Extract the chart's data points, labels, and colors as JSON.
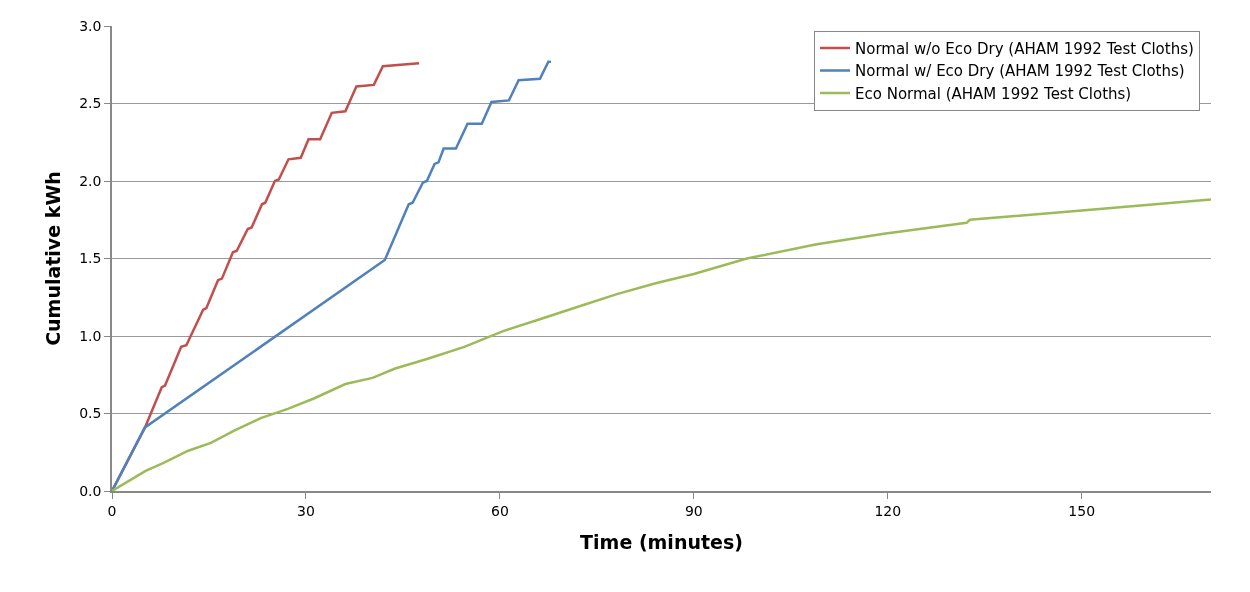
{
  "chart_data": {
    "type": "line",
    "xlabel": "Time (minutes)",
    "ylabel": "Cumulative kWh",
    "xlim": [
      0,
      170
    ],
    "xticks": [
      0,
      30,
      60,
      90,
      120,
      150
    ],
    "ylim": [
      0,
      3
    ],
    "yticks": [
      {
        "value": 0,
        "label": "0.0"
      },
      {
        "value": 0.5,
        "label": "0.5"
      },
      {
        "value": 1,
        "label": "1.0"
      },
      {
        "value": 1.5,
        "label": "1.5"
      },
      {
        "value": 2,
        "label": "2.0"
      },
      {
        "value": 2.5,
        "label": "2.5"
      },
      {
        "value": 3,
        "label": "3.0"
      }
    ],
    "grid": "y",
    "legend": "top right",
    "marker": "none",
    "line_style": "solid",
    "series": [
      {
        "name": "Normal w/o Eco Dry (AHAM 1992 Test Cloths)",
        "color": "#c0504d",
        "x": [
          0,
          5.1,
          7.7,
          8.2,
          10.7,
          11.5,
          14.1,
          14.6,
          16.4,
          17.0,
          18.7,
          19.3,
          21.0,
          21.6,
          23.2,
          23.7,
          25.2,
          25.8,
          27.3,
          29.2,
          30.4,
          32.2,
          34.0,
          36.1,
          37.8,
          40.5,
          41.9,
          47.5
        ],
        "values": [
          0,
          0.41,
          0.67,
          0.68,
          0.93,
          0.94,
          1.17,
          1.18,
          1.36,
          1.37,
          1.54,
          1.55,
          1.69,
          1.7,
          1.85,
          1.86,
          2.0,
          2.01,
          2.14,
          2.15,
          2.27,
          2.27,
          2.44,
          2.45,
          2.61,
          2.62,
          2.74,
          2.76
        ]
      },
      {
        "name": "Normal w/ Eco Dry (AHAM 1992 Test Cloths)",
        "color": "#4f81bd",
        "x": [
          0,
          5.1,
          42.2,
          45.9,
          46.5,
          48.1,
          48.7,
          49.9,
          50.5,
          51.3,
          53.2,
          55.0,
          57.2,
          58.7,
          61.4,
          62.9,
          66.2,
          67.5,
          67.9
        ],
        "values": [
          0,
          0.41,
          1.49,
          1.85,
          1.86,
          1.99,
          2.0,
          2.11,
          2.12,
          2.21,
          2.21,
          2.37,
          2.37,
          2.51,
          2.52,
          2.65,
          2.66,
          2.77,
          2.77
        ]
      },
      {
        "name": "Eco Normal (AHAM 1992 Test Cloths)",
        "color": "#9bbb59",
        "x": [
          0,
          5.2,
          7.9,
          11.8,
          15.3,
          18.9,
          23.0,
          27.2,
          31.4,
          36.1,
          40.3,
          43.8,
          48.6,
          54.5,
          60.4,
          66.3,
          72.2,
          78.1,
          84.1,
          90.0,
          98.2,
          108.8,
          119.4,
          132.2,
          132.7,
          150.0,
          170.0
        ],
        "values": [
          0,
          0.13,
          0.18,
          0.26,
          0.31,
          0.39,
          0.47,
          0.53,
          0.6,
          0.69,
          0.73,
          0.79,
          0.85,
          0.93,
          1.03,
          1.11,
          1.19,
          1.27,
          1.34,
          1.4,
          1.5,
          1.59,
          1.66,
          1.73,
          1.75,
          1.81,
          1.88
        ]
      }
    ]
  }
}
